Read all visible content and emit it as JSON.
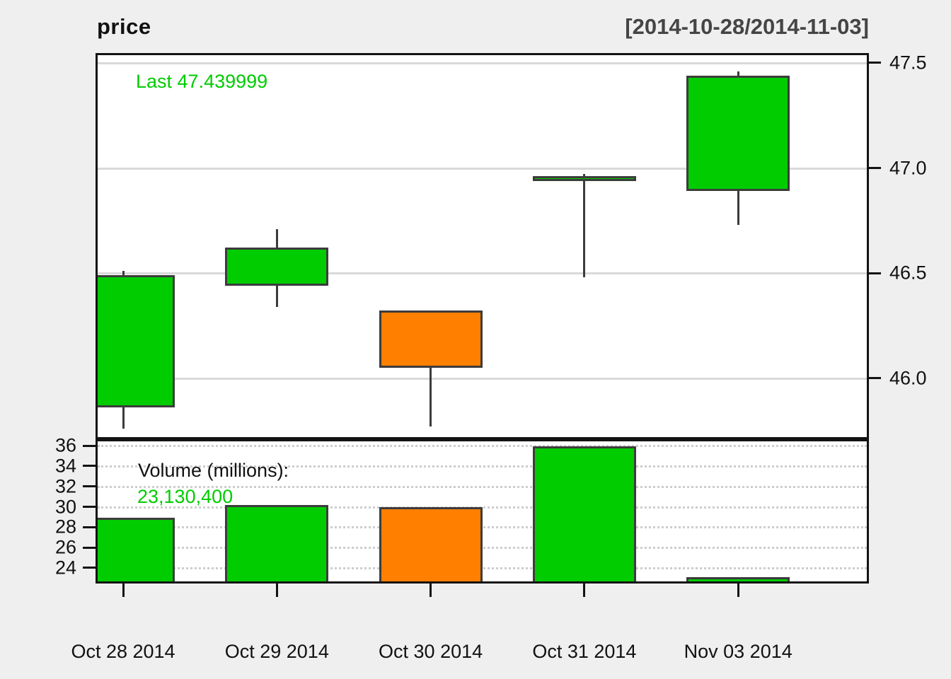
{
  "header": {
    "title": "price",
    "date_range": "[2014-10-28/2014-11-03]"
  },
  "annotations": {
    "last_label": "Last 47.439999",
    "volume_title": "Volume (millions):",
    "volume_value": "23,130,400"
  },
  "chart_data": {
    "type": "candlestick",
    "title": "price",
    "subtitle": "[2014-10-28/2014-11-03]",
    "categories": [
      "Oct 28 2014",
      "Oct 29 2014",
      "Oct 30 2014",
      "Oct 31 2014",
      "Nov 03 2014"
    ],
    "ohlc": [
      {
        "open": 45.86,
        "high": 46.51,
        "low": 45.76,
        "close": 46.49,
        "direction": "up"
      },
      {
        "open": 46.44,
        "high": 46.71,
        "low": 46.34,
        "close": 46.62,
        "direction": "up"
      },
      {
        "open": 46.32,
        "high": 46.32,
        "low": 45.77,
        "close": 46.05,
        "direction": "down"
      },
      {
        "open": 46.94,
        "high": 46.97,
        "low": 46.48,
        "close": 46.96,
        "direction": "up"
      },
      {
        "open": 46.89,
        "high": 47.46,
        "low": 46.73,
        "close": 47.44,
        "direction": "up"
      }
    ],
    "volume_millions": [
      28.9,
      30.2,
      30.0,
      35.9,
      23.1304
    ],
    "last_price": 47.439999,
    "last_volume": 23130400,
    "price_axis": {
      "side": "right",
      "ylim": [
        45.719,
        47.537
      ],
      "ticks": [
        {
          "value": 47.5,
          "label": "47.5"
        },
        {
          "value": 47.0,
          "label": "47.0"
        },
        {
          "value": 46.5,
          "label": "46.5"
        },
        {
          "value": 46.0,
          "label": "46.0"
        }
      ],
      "grid": "solid"
    },
    "volume_axis": {
      "side": "left",
      "ylim": [
        22.68,
        36.42
      ],
      "ticks": [
        {
          "value": 36,
          "label": "36"
        },
        {
          "value": 34,
          "label": "34"
        },
        {
          "value": 32,
          "label": "32"
        },
        {
          "value": 30,
          "label": "30"
        },
        {
          "value": 28,
          "label": "28"
        },
        {
          "value": 26,
          "label": "26"
        },
        {
          "value": 24,
          "label": "24"
        }
      ],
      "grid": "dotted"
    },
    "colors": {
      "up": "#00CC00",
      "down": "#FF7F00",
      "candle_border": "#3C3C3C",
      "last_text": "#00CC00",
      "volume_value_text": "#00CC00",
      "range_text": "#454545",
      "grid_main": "#D9D9D9",
      "grid_volume": "#CDCDCD",
      "background": "#EFEFEF",
      "panel": "#FFFFFF"
    }
  }
}
